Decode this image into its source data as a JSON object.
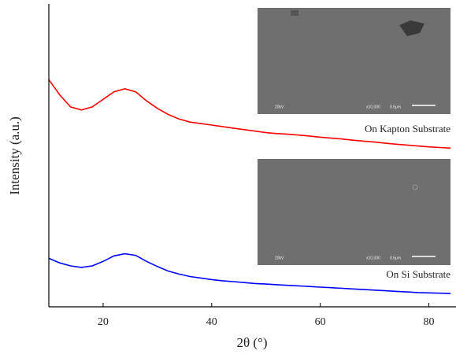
{
  "chart_data": {
    "type": "line",
    "xlabel": "2θ (°)",
    "ylabel": "Intensity (a.u.)",
    "xlim": [
      10,
      85
    ],
    "ylim": [
      0,
      100
    ],
    "xticks": [
      20,
      40,
      60,
      80
    ],
    "x": [
      10,
      12,
      14,
      16,
      18,
      20,
      22,
      24,
      26,
      28,
      30,
      32,
      34,
      36,
      38,
      40,
      42,
      44,
      46,
      48,
      50,
      52,
      54,
      56,
      58,
      60,
      62,
      64,
      66,
      68,
      70,
      72,
      74,
      76,
      78,
      80,
      82,
      84
    ],
    "series": [
      {
        "name": "On Kapton Substrate",
        "color": "#ff0000",
        "values": [
          75,
          70,
          66,
          65,
          66,
          68.5,
          71,
          72,
          71,
          68,
          65.5,
          63.5,
          62,
          61,
          60.5,
          60,
          59.5,
          59,
          58.5,
          58,
          57.5,
          57.2,
          57,
          56.7,
          56.4,
          56,
          55.7,
          55.4,
          55,
          54.7,
          54.4,
          54,
          53.7,
          53.4,
          53.1,
          52.8,
          52.6,
          52.4
        ]
      },
      {
        "name": "On Si Substrate",
        "color": "#0000ff",
        "values": [
          16,
          14.5,
          13.5,
          13,
          13.5,
          15,
          16.8,
          17.5,
          17,
          15,
          13.3,
          11.8,
          10.8,
          10,
          9.5,
          9,
          8.6,
          8.3,
          8,
          7.7,
          7.5,
          7.3,
          7.1,
          6.9,
          6.7,
          6.5,
          6.3,
          6.1,
          5.9,
          5.7,
          5.5,
          5.3,
          5.1,
          4.9,
          4.7,
          4.6,
          4.5,
          4.4
        ]
      }
    ],
    "insets": [
      {
        "voltage": "20kV",
        "magnification": "x10,000",
        "scale": "0.5μm"
      },
      {
        "voltage": "20kV",
        "magnification": "x10,000",
        "scale": "0.5μm"
      }
    ]
  }
}
